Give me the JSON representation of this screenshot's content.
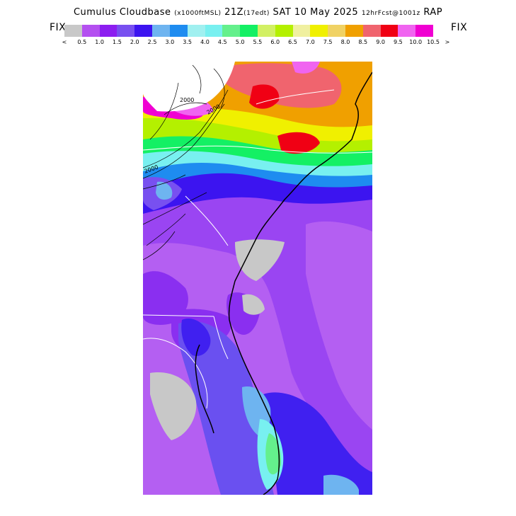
{
  "header": {
    "title_main": "Cumulus Cloudbase",
    "title_units": "(x1000ftMSL)",
    "valid_time": "21Z",
    "valid_local": "(17edt)",
    "date": "SAT 10 May 2025",
    "forecast": "12hrFcst@1001z",
    "model": "RAP"
  },
  "legend": {
    "fix_left": "FIX",
    "fix_right": "FIX",
    "colors": [
      "#c8c8c8",
      "#b450f0",
      "#8c1ef0",
      "#7850f0",
      "#3c14f0",
      "#6eb4f0",
      "#1e8cf0",
      "#a0f0f0",
      "#78f0f0",
      "#64f08c",
      "#14f064",
      "#d2f064",
      "#b4f000",
      "#f0f0a0",
      "#f0f000",
      "#f0d264",
      "#f0a000",
      "#f0646e",
      "#f00014",
      "#f064f0",
      "#f000d2"
    ],
    "tick_labels": [
      "<",
      "0.5",
      "1.0",
      "1.5",
      "2.0",
      "2.5",
      "3.0",
      "3.5",
      "4.0",
      "4.5",
      "5.0",
      "5.5",
      "6.0",
      "6.5",
      "7.0",
      "7.5",
      "8.0",
      "8.5",
      "9.0",
      "9.5",
      "10.0",
      "10.5",
      ">"
    ]
  },
  "map": {
    "contour_labels": [
      "2000",
      "2000",
      "2000"
    ]
  }
}
